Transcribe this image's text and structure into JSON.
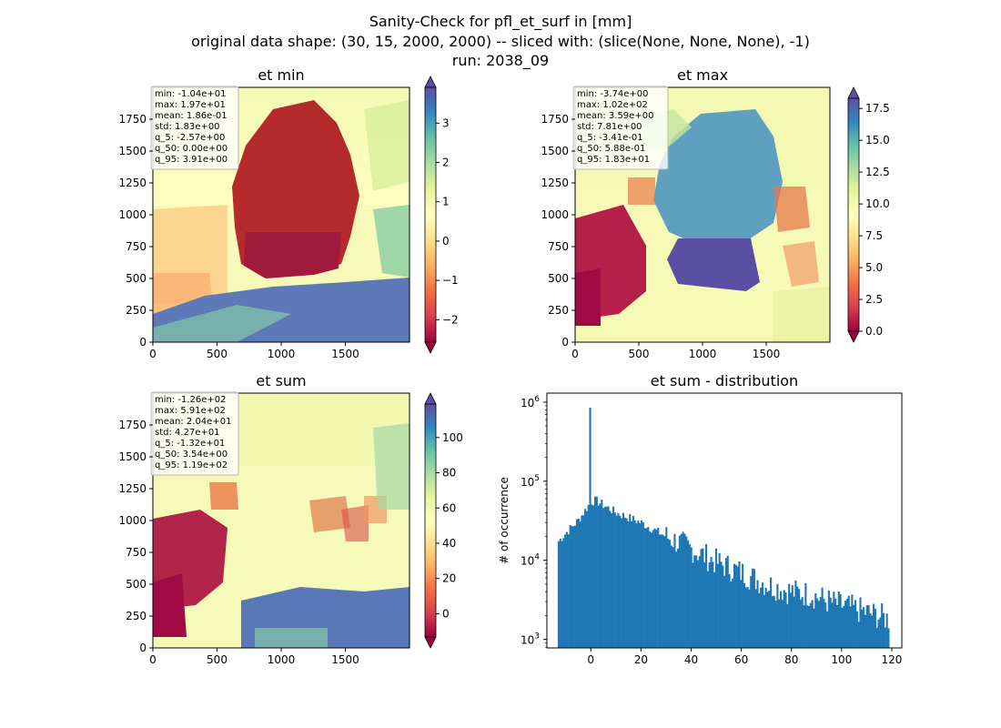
{
  "title_lines": [
    "Sanity-Check for pfl_et_surf in [mm]",
    "original data shape: (30, 15, 2000, 2000) -- sliced with: (slice(None, None, None), -1)",
    "run: 2038_09"
  ],
  "chart_data": [
    {
      "type": "heatmap",
      "title": "et min",
      "xlabel": "",
      "ylabel": "",
      "xlim": [
        0,
        2000
      ],
      "ylim": [
        0,
        2000
      ],
      "xticks": [
        "0",
        "500",
        "1000",
        "1500"
      ],
      "yticks": [
        "0",
        "250",
        "500",
        "750",
        "1000",
        "1250",
        "1500",
        "1750"
      ],
      "colormap": "Spectral",
      "clim": [
        -2.57,
        3.91
      ],
      "colorbar_ticks": [
        "−2",
        "−1",
        "0",
        "1",
        "2",
        "3"
      ],
      "colorbar_tick_values": [
        -2,
        -1,
        0,
        1,
        2,
        3
      ],
      "stats": [
        "min: -1.04e+01",
        "max: 1.97e+01",
        "mean: 1.86e-01",
        "std: 1.83e+00",
        "q_5: -2.57e+00",
        "q_50: 0.00e+00",
        "q_95: 3.91e+00"
      ]
    },
    {
      "type": "heatmap",
      "title": "et max",
      "xlabel": "",
      "ylabel": "",
      "xlim": [
        0,
        2000
      ],
      "ylim": [
        0,
        2000
      ],
      "xticks": [
        "0",
        "500",
        "1000",
        "1500"
      ],
      "yticks": [
        "0",
        "250",
        "500",
        "750",
        "1000",
        "1250",
        "1500",
        "1750"
      ],
      "colormap": "Spectral",
      "clim": [
        0,
        18.3
      ],
      "colorbar_ticks": [
        "0.0",
        "2.5",
        "5.0",
        "7.5",
        "10.0",
        "12.5",
        "15.0",
        "17.5"
      ],
      "colorbar_tick_values": [
        0,
        2.5,
        5,
        7.5,
        10,
        12.5,
        15,
        17.5
      ],
      "stats": [
        "min: -3.74e+00",
        "max: 1.02e+02",
        "mean: 3.59e+00",
        "std: 7.81e+00",
        "q_5: -3.41e-01",
        "q_50: 5.88e-01",
        "q_95: 1.83e+01"
      ]
    },
    {
      "type": "heatmap",
      "title": "et sum",
      "xlabel": "",
      "ylabel": "",
      "xlim": [
        0,
        2000
      ],
      "ylim": [
        0,
        2000
      ],
      "xticks": [
        "0",
        "500",
        "1000",
        "1500"
      ],
      "yticks": [
        "0",
        "250",
        "500",
        "750",
        "1000",
        "1250",
        "1500",
        "1750"
      ],
      "colormap": "Spectral",
      "clim": [
        -13.2,
        119
      ],
      "colorbar_ticks": [
        "0",
        "20",
        "40",
        "60",
        "80",
        "100"
      ],
      "colorbar_tick_values": [
        0,
        20,
        40,
        60,
        80,
        100
      ],
      "stats": [
        "min: -1.26e+02",
        "max: 5.91e+02",
        "mean: 2.04e+01",
        "std: 4.27e+01",
        "q_5: -1.32e+01",
        "q_50: 3.54e+00",
        "q_95: 1.19e+02"
      ]
    },
    {
      "type": "bar",
      "title": "et sum - distribution",
      "xlabel": "",
      "ylabel": "# of occurrence",
      "yscale": "log",
      "xlim": [
        -17.5,
        124
      ],
      "ylim": [
        780,
        1300000
      ],
      "xticks": [
        "0",
        "20",
        "40",
        "60",
        "80",
        "100",
        "120"
      ],
      "xtick_values": [
        0,
        20,
        40,
        60,
        80,
        100,
        120
      ],
      "ytick_values": [
        1000,
        10000,
        100000,
        1000000
      ],
      "color": "#1f77b4",
      "bin_range": [
        -13.2,
        119
      ],
      "spike": {
        "x": 0,
        "value": 850000
      },
      "envelope": [
        [
          -13.2,
          17000
        ],
        [
          -10,
          22000
        ],
        [
          -5,
          32000
        ],
        [
          -2,
          44000
        ],
        [
          0,
          55000
        ],
        [
          2,
          57000
        ],
        [
          5,
          50000
        ],
        [
          10,
          40000
        ],
        [
          20,
          30000
        ],
        [
          30,
          20000
        ],
        [
          40,
          14000
        ],
        [
          50,
          9500
        ],
        [
          60,
          7000
        ],
        [
          70,
          5000
        ],
        [
          80,
          4000
        ],
        [
          88,
          3700
        ],
        [
          95,
          3000
        ],
        [
          100,
          2700
        ],
        [
          110,
          2200
        ],
        [
          119,
          1800
        ]
      ]
    }
  ]
}
